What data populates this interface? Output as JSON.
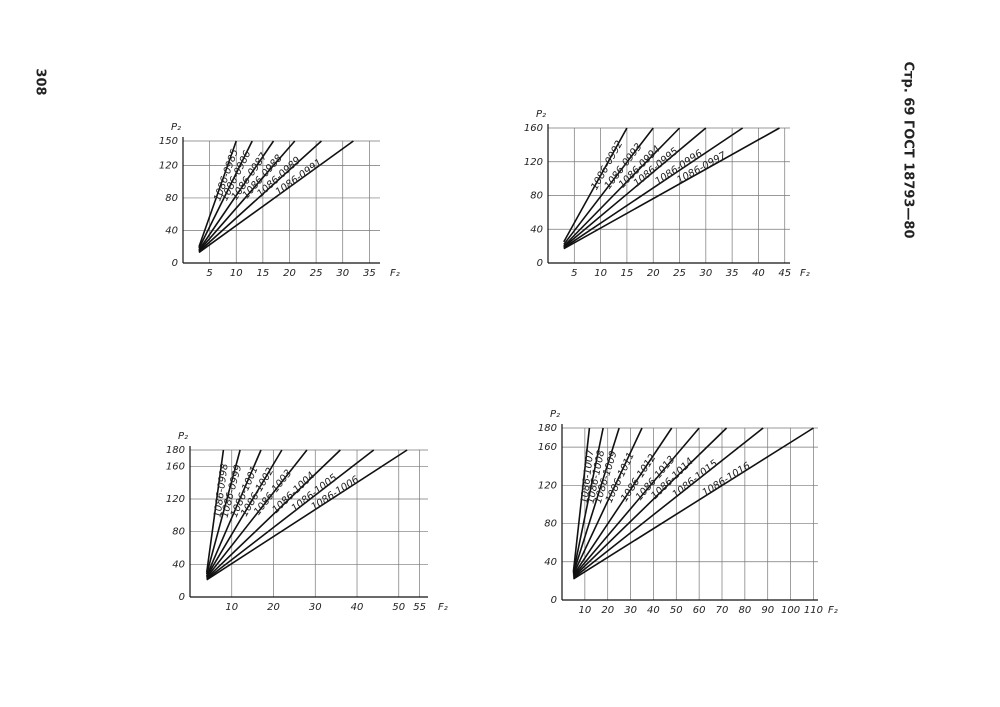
{
  "page_number": "308",
  "header": "Стр. 69 ГОСТ 18793—80",
  "chart_data": [
    {
      "type": "line",
      "x_label": "F₂",
      "y_label": "P₂",
      "xlim": [
        0,
        37
      ],
      "ylim": [
        0,
        150
      ],
      "xticks": [
        5,
        10,
        15,
        20,
        25,
        30,
        35
      ],
      "yticks": [
        0,
        40,
        80,
        120,
        150
      ],
      "grid": true,
      "series": [
        {
          "name": "1086-0985",
          "color": "#111111",
          "x": [
            3,
            10
          ],
          "values": [
            20,
            150
          ]
        },
        {
          "name": "1086-0986",
          "color": "#111111",
          "x": [
            3,
            13
          ],
          "values": [
            18,
            150
          ]
        },
        {
          "name": "1086-0987",
          "color": "#111111",
          "x": [
            3,
            17
          ],
          "values": [
            16,
            150
          ]
        },
        {
          "name": "1086-0988",
          "color": "#111111",
          "x": [
            3,
            21
          ],
          "values": [
            15,
            150
          ]
        },
        {
          "name": "1086-0989",
          "color": "#111111",
          "x": [
            3,
            26
          ],
          "values": [
            14,
            150
          ]
        },
        {
          "name": "1086-0991",
          "color": "#111111",
          "x": [
            3,
            32
          ],
          "values": [
            13,
            150
          ]
        }
      ]
    },
    {
      "type": "line",
      "x_label": "F₂",
      "y_label": "P₂",
      "xlim": [
        0,
        46
      ],
      "ylim": [
        0,
        160
      ],
      "xticks": [
        5,
        10,
        15,
        20,
        25,
        30,
        35,
        40,
        45
      ],
      "yticks": [
        0,
        40,
        80,
        120,
        160
      ],
      "grid": true,
      "series": [
        {
          "name": "1086-0992",
          "color": "#111111",
          "x": [
            3,
            15
          ],
          "values": [
            25,
            160
          ]
        },
        {
          "name": "1086-0993",
          "color": "#111111",
          "x": [
            3,
            20
          ],
          "values": [
            22,
            160
          ]
        },
        {
          "name": "1086-0994",
          "color": "#111111",
          "x": [
            3,
            25
          ],
          "values": [
            20,
            160
          ]
        },
        {
          "name": "1086-0995",
          "color": "#111111",
          "x": [
            3,
            30
          ],
          "values": [
            19,
            160
          ]
        },
        {
          "name": "1086-0996",
          "color": "#111111",
          "x": [
            3,
            37
          ],
          "values": [
            18,
            160
          ]
        },
        {
          "name": "1086-0997",
          "color": "#111111",
          "x": [
            3,
            44
          ],
          "values": [
            17,
            160
          ]
        }
      ]
    },
    {
      "type": "line",
      "x_label": "F₂",
      "y_label": "P₂",
      "xlim": [
        0,
        57
      ],
      "ylim": [
        0,
        180
      ],
      "xticks": [
        10,
        20,
        30,
        40,
        50,
        55
      ],
      "yticks": [
        0,
        40,
        80,
        120,
        160,
        180
      ],
      "grid": true,
      "series": [
        {
          "name": "1086-0998",
          "color": "#111111",
          "x": [
            4,
            8
          ],
          "values": [
            30,
            180
          ]
        },
        {
          "name": "1086-0999",
          "color": "#111111",
          "x": [
            4,
            12
          ],
          "values": [
            28,
            180
          ]
        },
        {
          "name": "1086-1001",
          "color": "#111111",
          "x": [
            4,
            17
          ],
          "values": [
            26,
            180
          ]
        },
        {
          "name": "1086-1002",
          "color": "#111111",
          "x": [
            4,
            22
          ],
          "values": [
            25,
            180
          ]
        },
        {
          "name": "1086-1003",
          "color": "#111111",
          "x": [
            4,
            28
          ],
          "values": [
            24,
            180
          ]
        },
        {
          "name": "1086-1004",
          "color": "#111111",
          "x": [
            4,
            36
          ],
          "values": [
            23,
            180
          ]
        },
        {
          "name": "1086-1005",
          "color": "#111111",
          "x": [
            4,
            44
          ],
          "values": [
            22,
            180
          ]
        },
        {
          "name": "1086-1006",
          "color": "#111111",
          "x": [
            4,
            52
          ],
          "values": [
            21,
            180
          ]
        }
      ]
    },
    {
      "type": "line",
      "x_label": "F₂",
      "y_label": "P₂",
      "xlim": [
        0,
        112
      ],
      "ylim": [
        0,
        180
      ],
      "xticks": [
        10,
        20,
        30,
        40,
        50,
        60,
        70,
        80,
        90,
        100,
        110
      ],
      "yticks": [
        0,
        40,
        80,
        120,
        160,
        180
      ],
      "grid": true,
      "series": [
        {
          "name": "1086-1007",
          "color": "#111111",
          "x": [
            5,
            12
          ],
          "values": [
            30,
            180
          ]
        },
        {
          "name": "1086-1008",
          "color": "#111111",
          "x": [
            5,
            18
          ],
          "values": [
            29,
            180
          ]
        },
        {
          "name": "1086-1009",
          "color": "#111111",
          "x": [
            5,
            25
          ],
          "values": [
            28,
            180
          ]
        },
        {
          "name": "1086-1011",
          "color": "#111111",
          "x": [
            5,
            35
          ],
          "values": [
            27,
            180
          ]
        },
        {
          "name": "1086-1012",
          "color": "#111111",
          "x": [
            5,
            48
          ],
          "values": [
            26,
            180
          ]
        },
        {
          "name": "1086-1013",
          "color": "#111111",
          "x": [
            5,
            60
          ],
          "values": [
            25,
            180
          ]
        },
        {
          "name": "1086-1014",
          "color": "#111111",
          "x": [
            5,
            72
          ],
          "values": [
            24,
            180
          ]
        },
        {
          "name": "1086-1015",
          "color": "#111111",
          "x": [
            5,
            88
          ],
          "values": [
            23,
            180
          ]
        },
        {
          "name": "1086-1016",
          "color": "#111111",
          "x": [
            5,
            110
          ],
          "values": [
            22,
            180
          ]
        }
      ]
    }
  ]
}
